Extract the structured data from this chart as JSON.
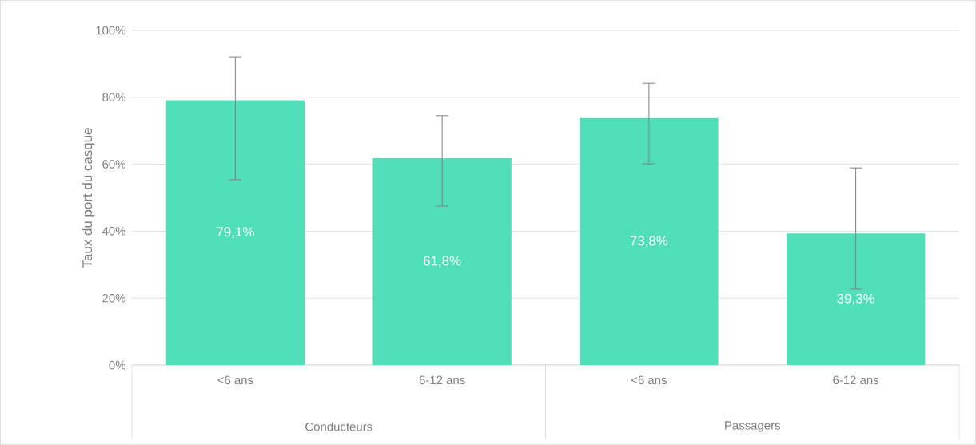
{
  "chart_data": {
    "type": "bar",
    "ylabel": "Taux du port du casque",
    "categories": [
      "<6 ans",
      "6-12 ans",
      "<6 ans",
      "6-12 ans"
    ],
    "values": [
      79.1,
      61.8,
      73.8,
      39.3
    ],
    "value_labels": [
      "79,1%",
      "61,8%",
      "73,8%",
      "39,3%"
    ],
    "errors": [
      [
        55.4,
        92.1
      ],
      [
        47.5,
        74.5
      ],
      [
        60.1,
        84.2
      ],
      [
        22.7,
        58.9
      ]
    ],
    "color": "#50dfb9",
    "ylim": [
      0,
      100
    ],
    "yticks": [
      {
        "value": 0,
        "label": "0%"
      },
      {
        "value": 20,
        "label": "20%"
      },
      {
        "value": 40,
        "label": "40%"
      },
      {
        "value": 60,
        "label": "60%"
      },
      {
        "value": 80,
        "label": "80%"
      },
      {
        "value": 100,
        "label": "100%"
      }
    ],
    "grid": "y",
    "annotations": [
      "Conducteurs",
      "Passagers"
    ]
  }
}
